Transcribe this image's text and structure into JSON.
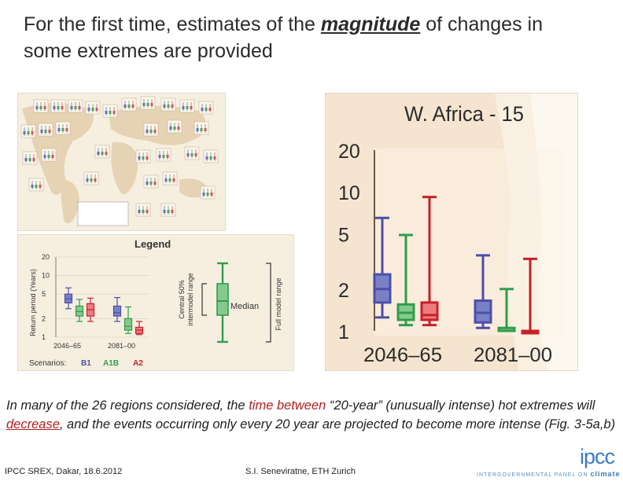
{
  "slide": {
    "title_pre": "For the first time, estimates of the ",
    "title_em": "magnitude",
    "title_post": " of changes in some extremes are provided",
    "body_1": "In many of the 26 regions considered, the ",
    "body_red_1": "time between",
    "body_2": " “20-year” (unusually intense) hot extremes will ",
    "body_red_2": "decrease",
    "body_3": ", and the events occurring only every 20 year are projected to become more intense (Fig. 3-5a,b)",
    "footer_left": "IPCC SREX, Dakar, 18.6.2012",
    "footer_mid": "S.I. Seneviratne, ETH Zurich",
    "logo_text": "ipcc",
    "logo_tag": "INTERGOVERNMENTAL PANEL ON",
    "logo_tag_bold": "climate change",
    "colors": {
      "B1": "#4a4fa8",
      "A1B": "#2e9e4a",
      "A2": "#c8202a",
      "axis": "#6b5a4a"
    }
  },
  "legend": {
    "title": "Legend",
    "ylabel": "Return period (Years)",
    "yticks": [
      "20",
      "10",
      "5",
      "2",
      "1"
    ],
    "periods": [
      "2046–65",
      "2081–00"
    ],
    "scenarios_label": "Scenarios:",
    "scenarios": [
      "B1",
      "A1B",
      "A2"
    ],
    "interm_label_1": "Central 50%",
    "interm_label_2": "intermodel range",
    "median_label": "Median",
    "full_label": "Full model range",
    "example": {
      "2046-65": [
        {
          "min": 2.9,
          "q1": 3.6,
          "med": 4.2,
          "q3": 5.0,
          "max": 6.3
        },
        {
          "min": 1.8,
          "q1": 2.2,
          "med": 2.6,
          "q3": 3.2,
          "max": 4.1
        },
        {
          "min": 1.8,
          "q1": 2.2,
          "med": 2.8,
          "q3": 3.5,
          "max": 4.3
        }
      ],
      "2081-00": [
        {
          "min": 1.8,
          "q1": 2.2,
          "med": 2.5,
          "q3": 3.2,
          "max": 4.4
        },
        {
          "min": 1.15,
          "q1": 1.3,
          "med": 1.5,
          "q3": 2.0,
          "max": 3.1
        },
        {
          "min": 1.1,
          "q1": 1.15,
          "med": 1.3,
          "q3": 1.45,
          "max": 1.8
        }
      ]
    }
  },
  "chart_data": {
    "type": "box",
    "title": "W. Africa - 15",
    "ylabel": "",
    "scale": "log",
    "ylim": [
      1,
      20
    ],
    "yticks": [
      20,
      10,
      5,
      2,
      1
    ],
    "categories": [
      "2046–65",
      "2081–00"
    ],
    "series": [
      {
        "name": "B1",
        "boxes": [
          {
            "min": 1.25,
            "q1": 1.6,
            "med": 2.0,
            "q3": 2.55,
            "max": 6.5
          },
          {
            "min": 1.05,
            "q1": 1.15,
            "med": 1.35,
            "q3": 1.65,
            "max": 3.5
          }
        ]
      },
      {
        "name": "A1B",
        "boxes": [
          {
            "min": 1.1,
            "q1": 1.2,
            "med": 1.35,
            "q3": 1.55,
            "max": 4.9
          },
          {
            "min": 1.0,
            "q1": 1.0,
            "med": 1.0,
            "q3": 1.05,
            "max": 2.0
          }
        ]
      },
      {
        "name": "A2",
        "boxes": [
          {
            "min": 1.1,
            "q1": 1.2,
            "med": 1.3,
            "q3": 1.6,
            "max": 9.2
          },
          {
            "min": 1.0,
            "q1": 1.0,
            "med": 1.0,
            "q3": 1.0,
            "max": 3.3
          }
        ]
      }
    ]
  }
}
